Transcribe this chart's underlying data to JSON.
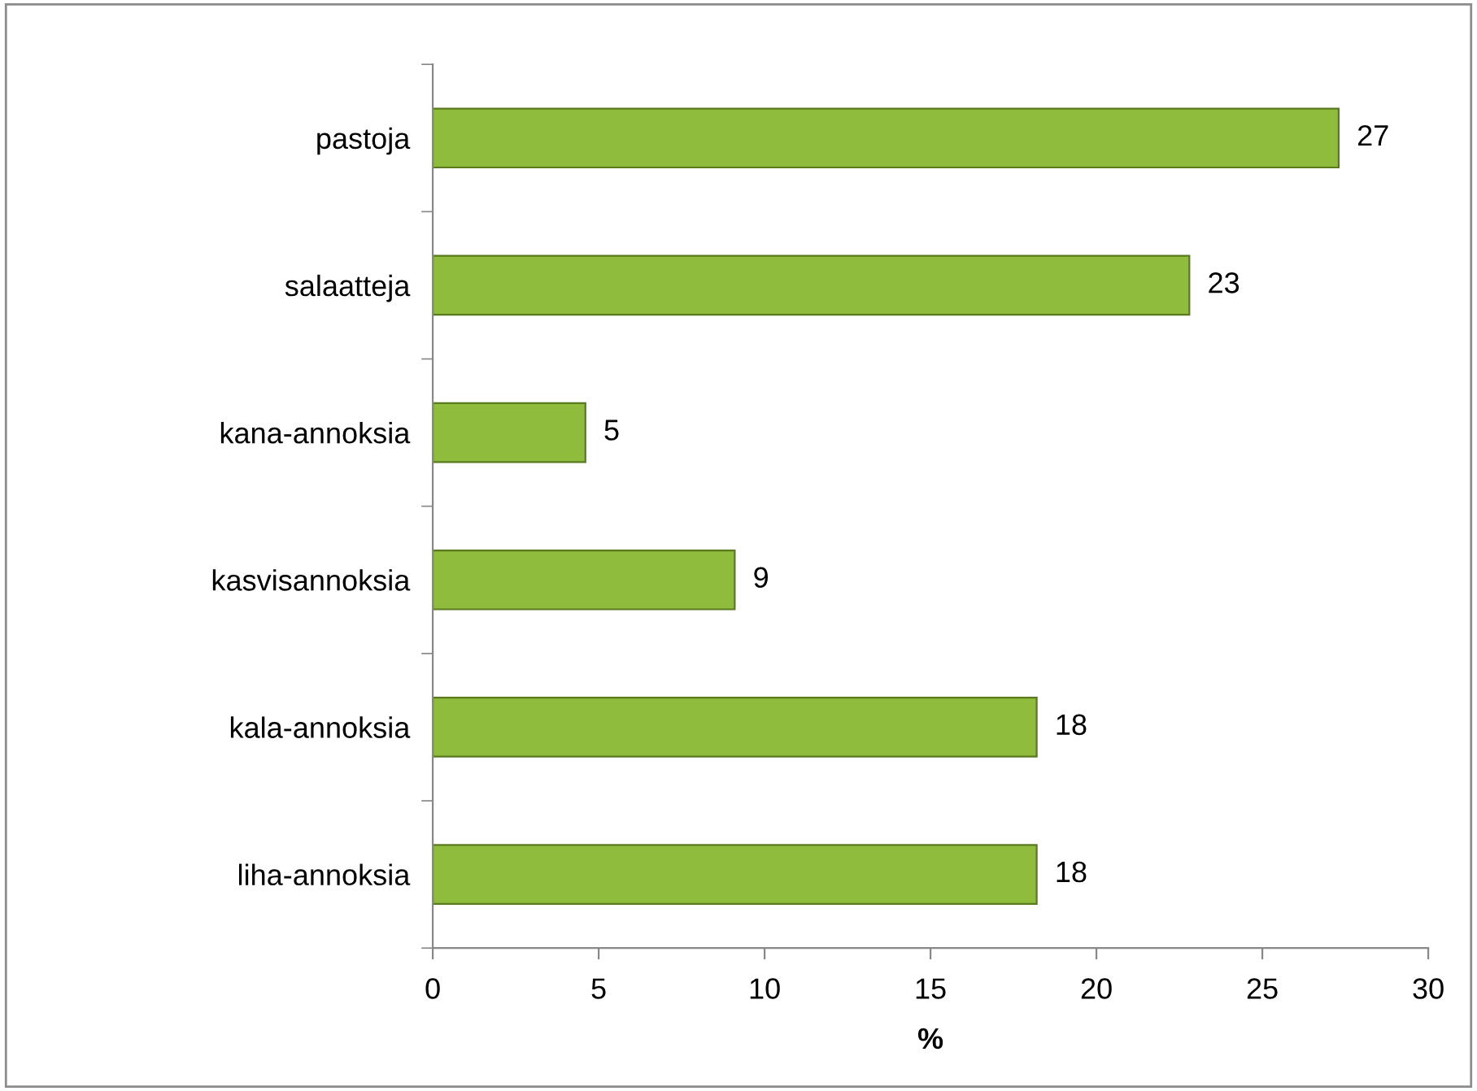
{
  "chart_data": {
    "type": "bar",
    "orientation": "horizontal",
    "xlabel": "%",
    "categories": [
      "pastoja",
      "salaatteja",
      "kana-annoksia",
      "kasvisannoksia",
      "kala-annoksia",
      "liha-annoksia"
    ],
    "values": [
      27.3,
      22.8,
      4.6,
      9.1,
      18.2,
      18.2
    ],
    "value_labels": [
      "27",
      "23",
      "5",
      "9",
      "18",
      "18"
    ],
    "color": "#8fbc3c",
    "xlim": [
      0,
      30
    ],
    "xticks": [
      0,
      5,
      10,
      15,
      20,
      25,
      30
    ],
    "grid": false,
    "legend": false
  }
}
